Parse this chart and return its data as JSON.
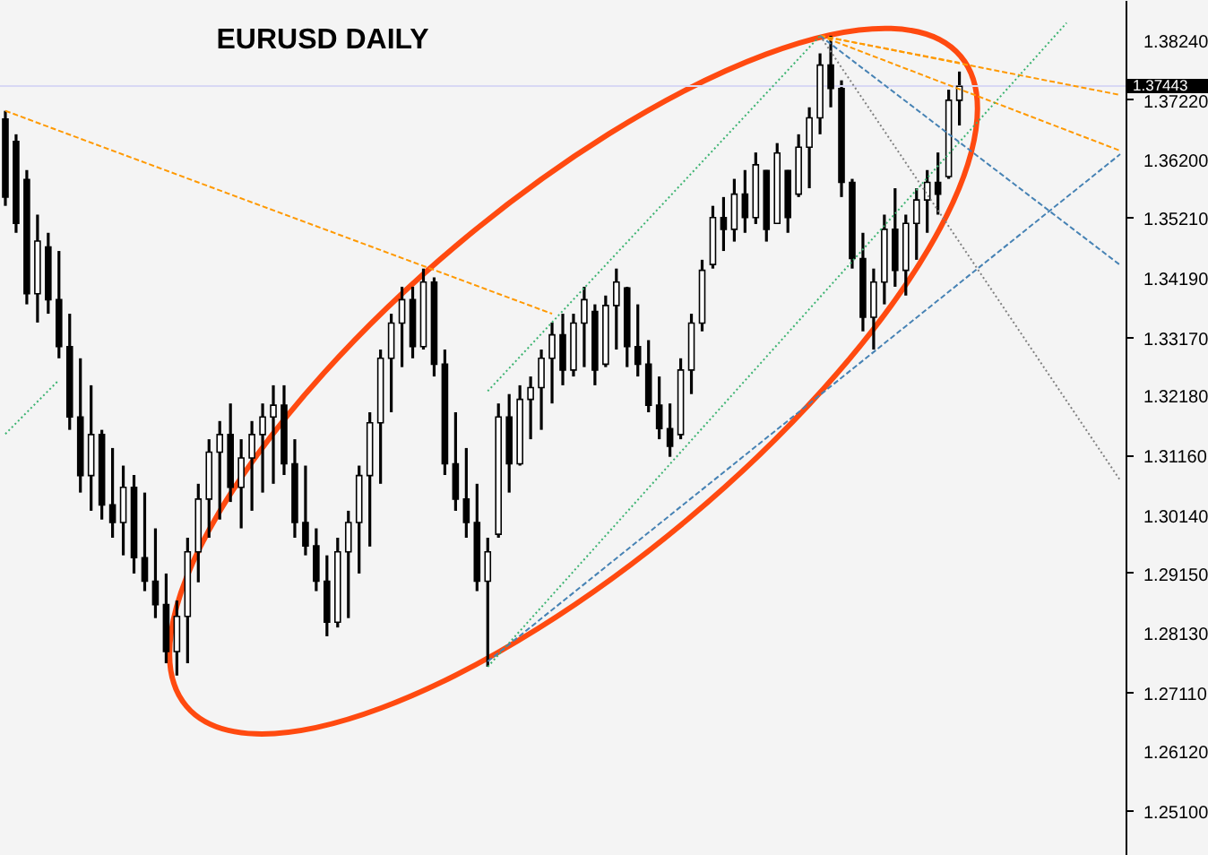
{
  "chart_data": {
    "type": "candlestick",
    "title": "EURUSD DAILY",
    "categories": [
      null,
      null,
      null,
      null,
      null,
      null,
      null,
      null,
      null,
      null,
      null,
      null,
      null,
      null,
      null,
      null,
      null,
      null,
      null,
      null,
      null,
      null,
      null,
      null,
      null,
      null,
      null,
      null,
      null,
      null,
      null,
      null,
      null,
      null,
      null,
      null,
      null,
      null,
      null,
      null,
      null,
      null,
      null,
      null,
      null,
      null,
      null,
      null,
      null,
      null,
      null,
      null,
      null,
      null,
      null,
      null,
      null,
      null,
      null,
      null,
      null,
      null,
      null,
      null,
      null,
      null,
      null,
      null,
      null,
      null,
      null,
      null,
      null,
      null,
      null,
      null,
      null,
      null,
      null,
      null,
      null,
      null,
      null,
      null,
      null,
      null,
      null,
      null,
      null,
      null,
      null,
      null,
      null,
      null,
      null,
      null,
      null,
      null,
      null,
      null,
      null,
      null,
      null,
      null,
      null
    ],
    "ohlc": [
      [
        1.3688,
        1.3702,
        1.354,
        1.3555
      ],
      [
        1.365,
        1.3662,
        1.3494,
        1.351
      ],
      [
        1.3585,
        1.3601,
        1.3372,
        1.339
      ],
      [
        1.339,
        1.3525,
        1.3341,
        1.348
      ],
      [
        1.347,
        1.3494,
        1.3356,
        1.338
      ],
      [
        1.338,
        1.3463,
        1.328,
        1.33
      ],
      [
        1.33,
        1.3356,
        1.3158,
        1.318
      ],
      [
        1.318,
        1.328,
        1.3051,
        1.308
      ],
      [
        1.308,
        1.3234,
        1.302,
        1.315
      ],
      [
        1.315,
        1.3158,
        1.3005,
        1.303
      ],
      [
        1.303,
        1.3127,
        1.2974,
        1.3
      ],
      [
        1.3,
        1.3097,
        1.2944,
        1.306
      ],
      [
        1.306,
        1.3081,
        1.2913,
        1.294
      ],
      [
        1.294,
        1.3051,
        1.2883,
        1.29
      ],
      [
        1.29,
        1.299,
        1.2837,
        1.286
      ],
      [
        1.286,
        1.2913,
        1.276,
        1.278
      ],
      [
        1.278,
        1.2867,
        1.2739,
        1.284
      ],
      [
        1.284,
        1.2974,
        1.276,
        1.295
      ],
      [
        1.295,
        1.3066,
        1.2898,
        1.304
      ],
      [
        1.304,
        1.3142,
        1.2974,
        1.312
      ],
      [
        1.312,
        1.3173,
        1.3005,
        1.315
      ],
      [
        1.315,
        1.3203,
        1.3035,
        1.306
      ],
      [
        1.306,
        1.3142,
        1.299,
        1.311
      ],
      [
        1.311,
        1.3173,
        1.302,
        1.315
      ],
      [
        1.315,
        1.3203,
        1.3051,
        1.318
      ],
      [
        1.318,
        1.3234,
        1.3066,
        1.32
      ],
      [
        1.32,
        1.3234,
        1.3081,
        1.31
      ],
      [
        1.31,
        1.3142,
        1.2974,
        1.3
      ],
      [
        1.3,
        1.3097,
        1.2944,
        1.296
      ],
      [
        1.296,
        1.299,
        1.2883,
        1.29
      ],
      [
        1.29,
        1.2944,
        1.2806,
        1.283
      ],
      [
        1.283,
        1.2974,
        1.2821,
        1.295
      ],
      [
        1.295,
        1.302,
        1.2837,
        1.3
      ],
      [
        1.3,
        1.3097,
        1.2913,
        1.308
      ],
      [
        1.308,
        1.3188,
        1.2959,
        1.317
      ],
      [
        1.317,
        1.3295,
        1.3066,
        1.328
      ],
      [
        1.328,
        1.3356,
        1.3188,
        1.334
      ],
      [
        1.334,
        1.3402,
        1.3265,
        1.338
      ],
      [
        1.338,
        1.3402,
        1.328,
        1.33
      ],
      [
        1.33,
        1.3433,
        1.3295,
        1.341
      ],
      [
        1.341,
        1.3418,
        1.3249,
        1.327
      ],
      [
        1.327,
        1.3295,
        1.3081,
        1.31
      ],
      [
        1.31,
        1.3188,
        1.302,
        1.304
      ],
      [
        1.304,
        1.3127,
        1.2974,
        1.3
      ],
      [
        1.3,
        1.3066,
        1.2883,
        1.29
      ],
      [
        1.29,
        1.2974,
        1.2754,
        1.295
      ],
      [
        1.298,
        1.3203,
        1.2974,
        1.318
      ],
      [
        1.318,
        1.3219,
        1.3051,
        1.31
      ],
      [
        1.31,
        1.3234,
        1.3097,
        1.321
      ],
      [
        1.321,
        1.3249,
        1.3142,
        1.323
      ],
      [
        1.323,
        1.3295,
        1.3158,
        1.328
      ],
      [
        1.328,
        1.3341,
        1.3203,
        1.332
      ],
      [
        1.332,
        1.3356,
        1.3234,
        1.326
      ],
      [
        1.326,
        1.3356,
        1.3249,
        1.334
      ],
      [
        1.334,
        1.3402,
        1.3265,
        1.338
      ],
      [
        1.336,
        1.3372,
        1.3234,
        1.326
      ],
      [
        1.327,
        1.3387,
        1.3265,
        1.337
      ],
      [
        1.337,
        1.3433,
        1.3295,
        1.341
      ],
      [
        1.34,
        1.3402,
        1.3265,
        1.33
      ],
      [
        1.33,
        1.3372,
        1.3249,
        1.327
      ],
      [
        1.327,
        1.3311,
        1.3188,
        1.32
      ],
      [
        1.32,
        1.3249,
        1.3142,
        1.316
      ],
      [
        1.316,
        1.3203,
        1.3112,
        1.313
      ],
      [
        1.315,
        1.328,
        1.3142,
        1.326
      ],
      [
        1.326,
        1.3356,
        1.3219,
        1.334
      ],
      [
        1.334,
        1.3448,
        1.3326,
        1.343
      ],
      [
        1.344,
        1.354,
        1.3433,
        1.352
      ],
      [
        1.352,
        1.3555,
        1.3463,
        1.35
      ],
      [
        1.35,
        1.3586,
        1.3479,
        1.356
      ],
      [
        1.356,
        1.3601,
        1.3494,
        1.352
      ],
      [
        1.352,
        1.3631,
        1.3509,
        1.361
      ],
      [
        1.36,
        1.3601,
        1.3479,
        1.35
      ],
      [
        1.351,
        1.3647,
        1.3509,
        1.363
      ],
      [
        1.36,
        1.3601,
        1.3494,
        1.352
      ],
      [
        1.356,
        1.3662,
        1.3555,
        1.364
      ],
      [
        1.364,
        1.3708,
        1.357,
        1.369
      ],
      [
        1.369,
        1.38,
        1.3662,
        1.378
      ],
      [
        1.378,
        1.383,
        1.3708,
        1.374
      ],
      [
        1.374,
        1.3754,
        1.3555,
        1.358
      ],
      [
        1.358,
        1.3586,
        1.3433,
        1.345
      ],
      [
        1.345,
        1.3494,
        1.3326,
        1.335
      ],
      [
        1.335,
        1.3433,
        1.3295,
        1.341
      ],
      [
        1.341,
        1.3525,
        1.3372,
        1.35
      ],
      [
        1.35,
        1.357,
        1.3402,
        1.343
      ],
      [
        1.343,
        1.3525,
        1.3387,
        1.351
      ],
      [
        1.351,
        1.357,
        1.3448,
        1.355
      ],
      [
        1.355,
        1.3601,
        1.3494,
        1.358
      ],
      [
        1.358,
        1.3631,
        1.3525,
        1.356
      ],
      [
        1.359,
        1.3738,
        1.3586,
        1.372
      ],
      [
        1.372,
        1.3769,
        1.3677,
        1.3744
      ],
      null,
      null,
      null,
      null,
      null,
      null,
      null,
      null,
      null,
      null,
      null,
      null,
      null,
      null,
      null
    ],
    "series": [
      {
        "type": "line",
        "color": "#ff9900",
        "line_style": "dashed",
        "values": [
          1.3702,
          null,
          null,
          null,
          null,
          null,
          null,
          null,
          null,
          null,
          null,
          null,
          null,
          null,
          null,
          null,
          null,
          null,
          null,
          null,
          null,
          null,
          null,
          null,
          null,
          null,
          null,
          null,
          null,
          null,
          null,
          null,
          null,
          null,
          null,
          null,
          null,
          null,
          null,
          null,
          null,
          null,
          null,
          null,
          null,
          null,
          null,
          null,
          null,
          null,
          null,
          1.3356,
          null,
          null,
          null,
          null,
          null,
          null,
          null,
          null,
          null,
          null,
          null,
          null,
          null,
          null,
          null,
          null,
          null,
          null,
          null,
          null,
          null,
          null,
          null,
          null,
          null,
          null,
          null,
          null,
          null,
          null,
          null,
          null,
          null,
          null,
          null,
          null,
          null,
          null,
          null,
          null,
          null,
          null,
          null,
          null,
          null,
          null,
          null,
          null,
          null,
          null,
          null,
          null,
          null
        ]
      },
      {
        "type": "line",
        "color": "#ff9900",
        "line_style": "dashed",
        "values": [
          null,
          null,
          null,
          null,
          null,
          null,
          null,
          null,
          null,
          null,
          null,
          null,
          null,
          null,
          null,
          null,
          null,
          null,
          null,
          null,
          null,
          null,
          null,
          null,
          null,
          null,
          null,
          null,
          null,
          null,
          null,
          null,
          null,
          null,
          null,
          null,
          null,
          null,
          null,
          null,
          null,
          null,
          null,
          null,
          null,
          null,
          null,
          null,
          null,
          null,
          null,
          null,
          null,
          null,
          null,
          null,
          null,
          null,
          null,
          null,
          null,
          null,
          null,
          null,
          null,
          null,
          null,
          null,
          null,
          null,
          null,
          null,
          null,
          null,
          null,
          null,
          1.383,
          null,
          null,
          null,
          null,
          null,
          null,
          null,
          null,
          null,
          null,
          null,
          null,
          null,
          null,
          null,
          null,
          null,
          null,
          null,
          null,
          null,
          null,
          null,
          null,
          null,
          null,
          null,
          1.3729
        ]
      },
      {
        "type": "line",
        "color": "#ff9900",
        "line_style": "dashed",
        "values": [
          null,
          null,
          null,
          null,
          null,
          null,
          null,
          null,
          null,
          null,
          null,
          null,
          null,
          null,
          null,
          null,
          null,
          null,
          null,
          null,
          null,
          null,
          null,
          null,
          null,
          null,
          null,
          null,
          null,
          null,
          null,
          null,
          null,
          null,
          null,
          null,
          null,
          null,
          null,
          null,
          null,
          null,
          null,
          null,
          null,
          null,
          null,
          null,
          null,
          null,
          null,
          null,
          null,
          null,
          null,
          null,
          null,
          null,
          null,
          null,
          null,
          null,
          null,
          null,
          null,
          null,
          null,
          null,
          null,
          null,
          null,
          null,
          null,
          null,
          null,
          null,
          1.383,
          null,
          null,
          null,
          null,
          null,
          null,
          null,
          null,
          null,
          null,
          null,
          null,
          null,
          null,
          null,
          null,
          null,
          null,
          null,
          null,
          null,
          null,
          null,
          null,
          null,
          null,
          null,
          1.3634
        ]
      },
      {
        "type": "line",
        "color": "#ff9900",
        "line_style": "dashed",
        "values": [
          null,
          null,
          null,
          null,
          null,
          null,
          null,
          null,
          null,
          null,
          null,
          null,
          null,
          null,
          null,
          null,
          null,
          null,
          null,
          null,
          null,
          null,
          null,
          null,
          null,
          null,
          null,
          null,
          null,
          null,
          null,
          null,
          null,
          null,
          null,
          null,
          null,
          null,
          null,
          null,
          null,
          null,
          null,
          null,
          null,
          null,
          null,
          null,
          null,
          null,
          null,
          null,
          null,
          null,
          null,
          null,
          null,
          null,
          null,
          null,
          null,
          null,
          null,
          null,
          null,
          null,
          null,
          null,
          null,
          null,
          null,
          null,
          null,
          null,
          null,
          null,
          1.383,
          null,
          null,
          null,
          null,
          null,
          null,
          null,
          null,
          null,
          null,
          null,
          null,
          1.3784,
          null,
          null,
          null,
          null,
          null,
          null,
          null,
          null,
          null,
          null,
          null,
          null,
          null,
          null,
          null
        ]
      },
      {
        "type": "line",
        "color": "#3cb371",
        "line_style": "dotted",
        "values": [
          null,
          null,
          null,
          null,
          null,
          null,
          null,
          null,
          null,
          null,
          null,
          null,
          null,
          null,
          null,
          null,
          null,
          null,
          null,
          null,
          null,
          null,
          null,
          null,
          null,
          null,
          null,
          null,
          null,
          null,
          null,
          null,
          null,
          null,
          null,
          null,
          null,
          null,
          null,
          null,
          null,
          null,
          null,
          null,
          null,
          1.2754,
          null,
          null,
          null,
          null,
          null,
          null,
          null,
          null,
          null,
          null,
          null,
          null,
          null,
          null,
          null,
          null,
          null,
          null,
          null,
          null,
          null,
          null,
          null,
          null,
          null,
          null,
          null,
          null,
          null,
          null,
          null,
          null,
          null,
          null,
          null,
          null,
          null,
          null,
          null,
          null,
          null,
          null,
          null,
          null,
          null,
          null,
          null,
          null,
          null,
          null,
          null,
          null,
          null,
          1.3852,
          null,
          null,
          null,
          null,
          null
        ]
      },
      {
        "type": "line",
        "color": "#3cb371",
        "line_style": "dotted",
        "values": [
          null,
          null,
          null,
          null,
          null,
          null,
          null,
          null,
          null,
          null,
          null,
          null,
          null,
          null,
          null,
          null,
          null,
          null,
          null,
          null,
          null,
          null,
          null,
          null,
          null,
          null,
          null,
          null,
          null,
          null,
          null,
          null,
          null,
          null,
          null,
          null,
          null,
          null,
          null,
          null,
          null,
          null,
          null,
          null,
          null,
          1.3224,
          null,
          null,
          null,
          null,
          null,
          null,
          null,
          null,
          null,
          null,
          null,
          null,
          null,
          null,
          null,
          null,
          null,
          null,
          null,
          null,
          null,
          null,
          null,
          null,
          null,
          null,
          null,
          null,
          null,
          null,
          1.383,
          null,
          null,
          null,
          null,
          null,
          null,
          null,
          null,
          null,
          null,
          null,
          null,
          null,
          null,
          null,
          null,
          null,
          null,
          null,
          null,
          null,
          null,
          null,
          null,
          null,
          null,
          null,
          null
        ]
      },
      {
        "type": "line",
        "color": "#3cb371",
        "line_style": "dotted",
        "values": [
          1.3151,
          null,
          null,
          null,
          null,
          1.3243,
          null,
          null,
          null,
          null,
          null,
          null,
          null,
          null,
          null,
          null,
          null,
          null,
          null,
          null,
          null,
          null,
          null,
          null,
          null,
          null,
          null,
          null,
          null,
          null,
          null,
          null,
          null,
          null,
          null,
          null,
          null,
          null,
          null,
          null,
          null,
          null,
          null,
          null,
          null,
          null,
          null,
          null,
          null,
          null,
          null,
          null,
          null,
          null,
          null,
          null,
          null,
          null,
          null,
          null,
          null,
          null,
          null,
          null,
          null,
          null,
          null,
          null,
          null,
          null,
          null,
          null,
          null,
          null,
          null,
          null,
          null,
          null,
          null,
          null,
          null,
          null,
          null,
          null,
          null,
          null,
          null,
          null,
          null,
          null,
          null,
          null,
          null,
          null,
          null,
          null,
          null,
          null,
          null,
          null,
          null,
          null,
          null,
          null,
          null
        ]
      },
      {
        "type": "line",
        "color": "#4682b4",
        "line_style": "dashed",
        "values": [
          null,
          null,
          null,
          null,
          null,
          null,
          null,
          null,
          null,
          null,
          null,
          null,
          null,
          null,
          null,
          null,
          null,
          null,
          null,
          null,
          null,
          null,
          null,
          null,
          null,
          null,
          null,
          null,
          null,
          null,
          null,
          null,
          null,
          null,
          null,
          null,
          null,
          null,
          null,
          null,
          null,
          null,
          null,
          null,
          null,
          1.2763,
          null,
          null,
          null,
          null,
          null,
          null,
          null,
          null,
          null,
          null,
          null,
          null,
          null,
          null,
          null,
          null,
          null,
          null,
          null,
          null,
          null,
          null,
          null,
          null,
          null,
          null,
          null,
          null,
          null,
          null,
          null,
          null,
          null,
          null,
          null,
          null,
          null,
          null,
          null,
          null,
          null,
          null,
          null,
          null,
          null,
          null,
          null,
          null,
          null,
          null,
          null,
          null,
          null,
          null,
          null,
          null,
          null,
          null,
          1.3628
        ]
      },
      {
        "type": "line",
        "color": "#4682b4",
        "line_style": "dashed",
        "values": [
          null,
          null,
          null,
          null,
          null,
          null,
          null,
          null,
          null,
          null,
          null,
          null,
          null,
          null,
          null,
          null,
          null,
          null,
          null,
          null,
          null,
          null,
          null,
          null,
          null,
          null,
          null,
          null,
          null,
          null,
          null,
          null,
          null,
          null,
          null,
          null,
          null,
          null,
          null,
          null,
          null,
          null,
          null,
          null,
          null,
          null,
          null,
          null,
          null,
          null,
          null,
          null,
          null,
          null,
          null,
          null,
          null,
          null,
          null,
          null,
          null,
          null,
          null,
          null,
          null,
          null,
          null,
          null,
          null,
          null,
          null,
          null,
          null,
          null,
          null,
          null,
          1.383,
          null,
          null,
          null,
          null,
          null,
          null,
          null,
          null,
          null,
          null,
          null,
          null,
          null,
          null,
          null,
          null,
          null,
          null,
          null,
          null,
          null,
          null,
          null,
          null,
          null,
          null,
          null,
          1.3439
        ]
      },
      {
        "type": "line",
        "color": "#808080",
        "line_style": "dotted",
        "values": [
          null,
          null,
          null,
          null,
          null,
          null,
          null,
          null,
          null,
          null,
          null,
          null,
          null,
          null,
          null,
          null,
          null,
          null,
          null,
          null,
          null,
          null,
          null,
          null,
          null,
          null,
          null,
          null,
          null,
          null,
          null,
          null,
          null,
          null,
          null,
          null,
          null,
          null,
          null,
          null,
          null,
          null,
          null,
          null,
          null,
          null,
          null,
          null,
          null,
          null,
          null,
          null,
          null,
          null,
          null,
          null,
          null,
          null,
          null,
          null,
          null,
          null,
          null,
          null,
          null,
          null,
          null,
          null,
          null,
          null,
          null,
          null,
          null,
          null,
          null,
          null,
          1.383,
          null,
          null,
          null,
          null,
          null,
          null,
          null,
          null,
          null,
          null,
          null,
          null,
          null,
          null,
          null,
          null,
          null,
          null,
          null,
          null,
          null,
          null,
          null,
          null,
          null,
          null,
          null,
          1.3072
        ]
      }
    ],
    "ref_lines": [
      {
        "axis": "y",
        "value": 1.37443,
        "label": "1.37443",
        "color": "#d8d8f4"
      }
    ],
    "ylim": [
      1.2433,
      1.3891
    ],
    "yticks": [
      {
        "value": 1.3824,
        "label": "1.38240"
      },
      {
        "value": 1.3722,
        "label": "1.37220"
      },
      {
        "value": 1.362,
        "label": "1.36200"
      },
      {
        "value": 1.3521,
        "label": "1.35210"
      },
      {
        "value": 1.3419,
        "label": "1.34190"
      },
      {
        "value": 1.3317,
        "label": "1.33170"
      },
      {
        "value": 1.3218,
        "label": "1.32180"
      },
      {
        "value": 1.3116,
        "label": "1.31160"
      },
      {
        "value": 1.3014,
        "label": "1.30140"
      },
      {
        "value": 1.2915,
        "label": "1.29150"
      },
      {
        "value": 1.2813,
        "label": "1.28130"
      },
      {
        "value": 1.2711,
        "label": "1.27110"
      },
      {
        "value": 1.2612,
        "label": "1.26120"
      },
      {
        "value": 1.251,
        "label": "1.25100"
      }
    ],
    "tick_labels": "y",
    "grid": false
  }
}
